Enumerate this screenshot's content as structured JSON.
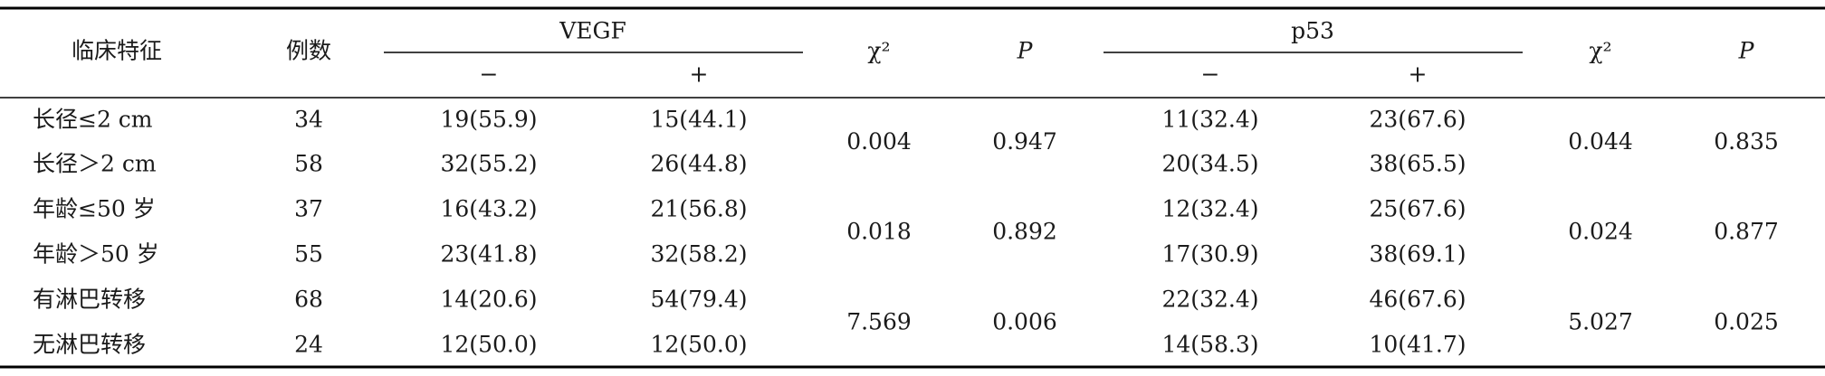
{
  "table": {
    "header": {
      "feature": "临床特征",
      "n": "例数",
      "vegf": "VEGF",
      "vegf_neg": "−",
      "vegf_pos": "+",
      "chi_vegf": "χ²",
      "p_vegf": "P",
      "p53": "p53",
      "p53_neg": "−",
      "p53_pos": "+",
      "chi_p53": "χ²",
      "p_p53": "P"
    },
    "groups": [
      {
        "rows": [
          [
            "长径≤2 cm",
            "34",
            "19(55.9)",
            "15(44.1)",
            "11(32.4)",
            "23(67.6)"
          ],
          [
            "长径＞2 cm",
            "58",
            "32(55.2)",
            "26(44.8)",
            "20(34.5)",
            "38(65.5)"
          ]
        ],
        "chi_vegf": "0.004",
        "p_vegf": "0.947",
        "chi_p53": "0.044",
        "p_p53": "0.835"
      },
      {
        "rows": [
          [
            "年龄≤50 岁",
            "37",
            "16(43.2)",
            "21(56.8)",
            "12(32.4)",
            "25(67.6)"
          ],
          [
            "年龄＞50 岁",
            "55",
            "23(41.8)",
            "32(58.2)",
            "17(30.9)",
            "38(69.1)"
          ]
        ],
        "chi_vegf": "0.018",
        "p_vegf": "0.892",
        "chi_p53": "0.024",
        "p_p53": "0.877"
      },
      {
        "rows": [
          [
            "有淋巴转移",
            "68",
            "14(20.6)",
            "54(79.4)",
            "22(32.4)",
            "46(67.6)"
          ],
          [
            "无淋巴转移",
            "24",
            "12(50.0)",
            "12(50.0)",
            "14(58.3)",
            "10(41.7)"
          ]
        ],
        "chi_vegf": "7.569",
        "p_vegf": "0.006",
        "chi_p53": "5.027",
        "p_p53": "0.025"
      }
    ]
  }
}
